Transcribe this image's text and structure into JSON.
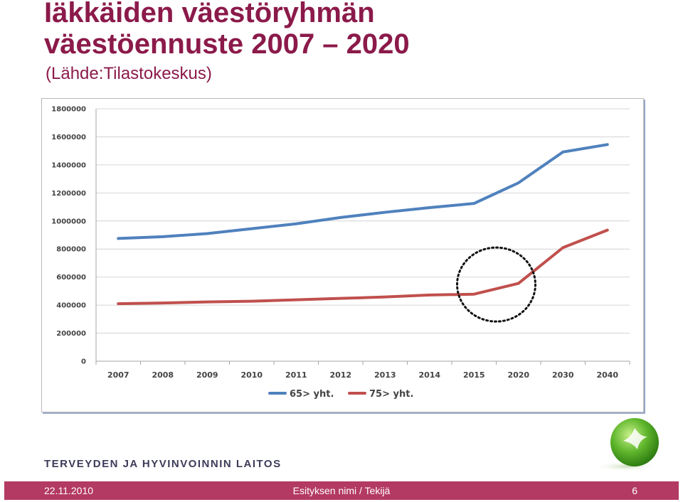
{
  "slide": {
    "title_line1": "Iäkkäiden väestöryhmän",
    "title_line2": "väestöennuste 2007 – 2020",
    "subtitle": "(Lähde:Tilastokeskus)"
  },
  "chart_data": {
    "type": "line",
    "title": "",
    "xlabel": "",
    "ylabel": "",
    "categories": [
      "2007",
      "2008",
      "2009",
      "2010",
      "2011",
      "2012",
      "2013",
      "2014",
      "2015",
      "2020",
      "2030",
      "2040"
    ],
    "y_ticks": [
      "0",
      "200000",
      "400000",
      "600000",
      "800000",
      "1000000",
      "1200000",
      "1400000",
      "1600000",
      "1800000"
    ],
    "ylim": [
      0,
      1800000
    ],
    "grid": true,
    "legend_position": "bottom",
    "series": [
      {
        "name": "65> yht.",
        "color": "#4f81bd",
        "values": [
          875000,
          888000,
          910000,
          945000,
          980000,
          1025000,
          1062000,
          1095000,
          1125000,
          1272000,
          1492000,
          1545000
        ]
      },
      {
        "name": "75> yht.",
        "color": "#c0504d",
        "values": [
          410000,
          415000,
          423000,
          428000,
          438000,
          448000,
          458000,
          472000,
          478000,
          555000,
          810000,
          935000
        ]
      }
    ],
    "annotation": {
      "type": "dotted-circle",
      "around_categories": [
        "2015",
        "2020"
      ]
    }
  },
  "footer": {
    "organization": "TERVEYDEN JA HYVINVOINNIN LAITOS",
    "date": "22.11.2010",
    "center_text": "Esityksen nimi / Tekijä",
    "page_number": "6",
    "bar_color": "#b33a62"
  }
}
